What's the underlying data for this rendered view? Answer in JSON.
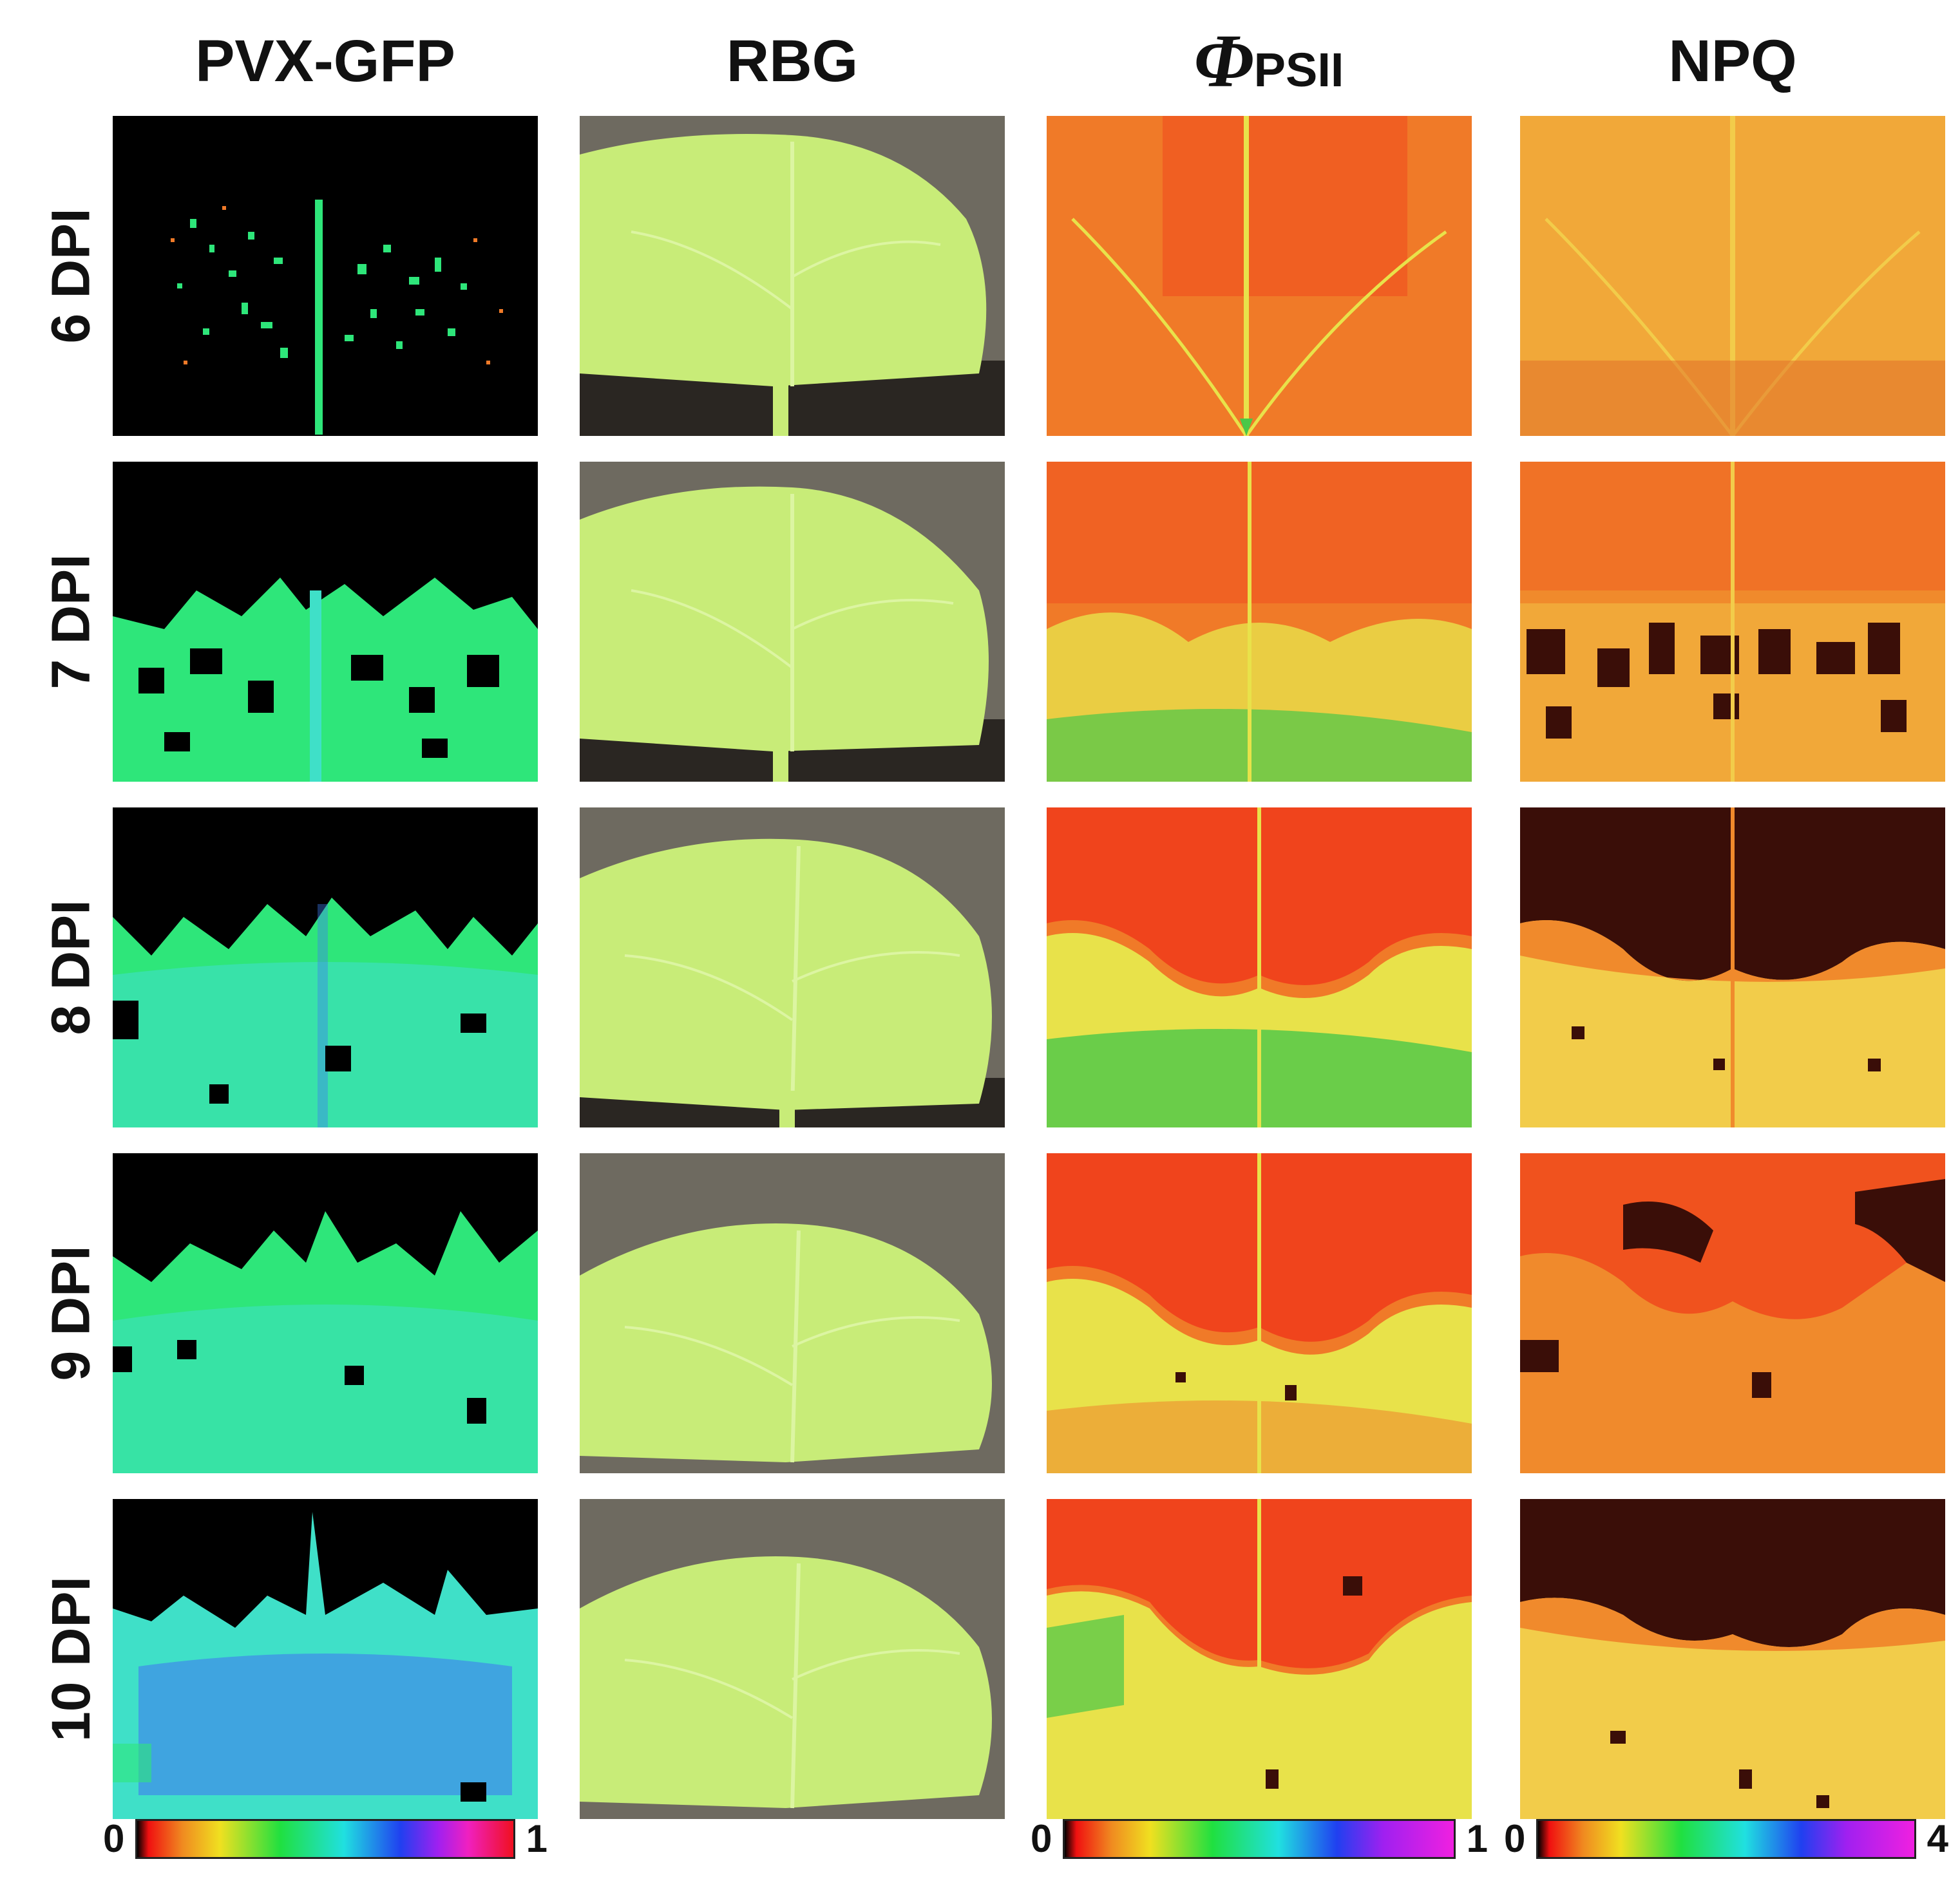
{
  "columns": [
    {
      "id": "gfp",
      "label": "PVX-GFP"
    },
    {
      "id": "rgb",
      "label": "RBG"
    },
    {
      "id": "phi",
      "label": "Φ",
      "subscript": "PSII"
    },
    {
      "id": "npq",
      "label": "NPQ"
    }
  ],
  "rows": [
    "6 DPI",
    "7 DPI",
    "8 DPI",
    "9 DPI",
    "10 DPI"
  ],
  "colorbars": {
    "gfp": {
      "min": "0",
      "max": "1"
    },
    "phi": {
      "min": "0",
      "max": "1"
    },
    "npq": {
      "min": "0",
      "max": "4"
    }
  },
  "colors": {
    "gfp_green": "#2ee67a",
    "gfp_cyan": "#3fe0c8",
    "gfp_blue": "#3f7cf0",
    "leaf": "#c8ec78",
    "leaf_light": "#dcf5a2",
    "background_gray": "#6e6a60",
    "soil": "#2a2622",
    "phi_red": "#f0441c",
    "phi_orange": "#f07a28",
    "phi_yellow": "#e8e24a",
    "phi_green": "#4ac848",
    "npq_orange": "#f08a2c",
    "npq_yellow": "#f2cc4a",
    "npq_dark": "#3a0e08"
  }
}
